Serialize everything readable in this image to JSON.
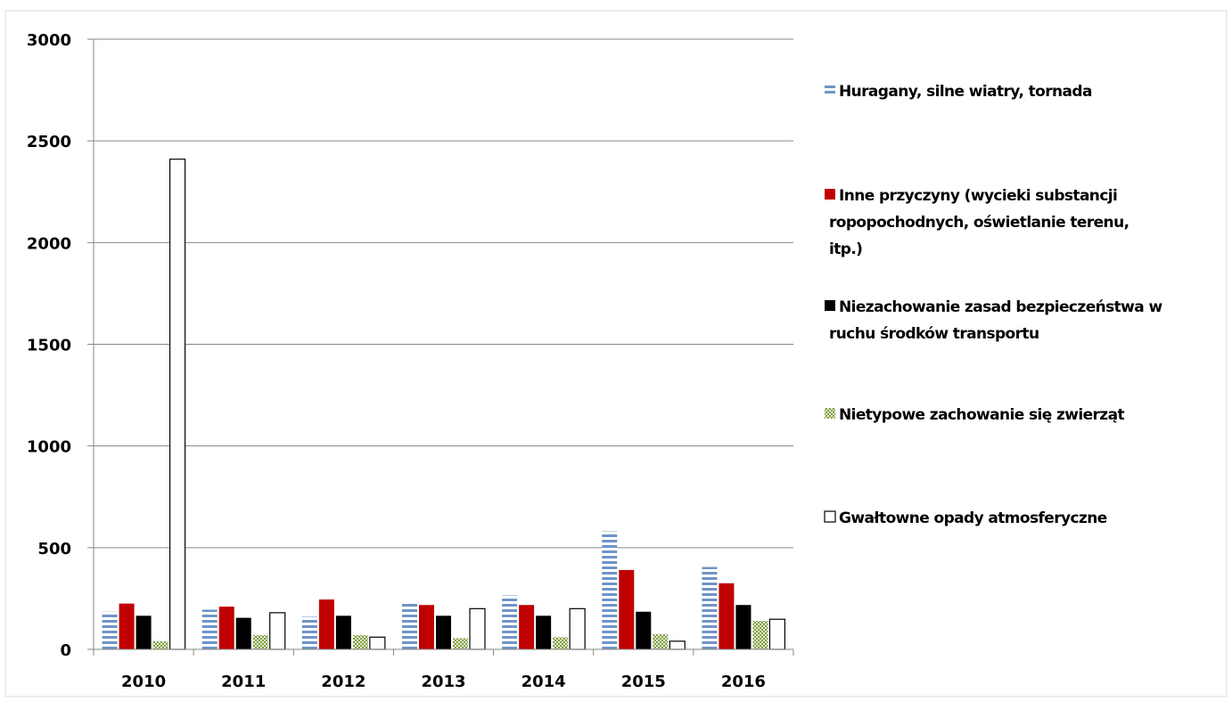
{
  "chart_data": {
    "type": "bar",
    "title": "",
    "xlabel": "",
    "ylabel": "",
    "categories": [
      "2010",
      "2011",
      "2012",
      "2013",
      "2014",
      "2015",
      "2016"
    ],
    "ylim": [
      0,
      3000
    ],
    "yticks": [
      "0",
      "500",
      "1000",
      "1500",
      "2000",
      "2500",
      "3000"
    ],
    "grid": true,
    "legend_position": "right",
    "series": [
      {
        "name": "Huragany, silne wiatry, tornada",
        "values": [
          185,
          195,
          160,
          230,
          265,
          580,
          405
        ],
        "color": "#6f95c3",
        "pattern": "horizontal-stripes"
      },
      {
        "name": "Inne przyczyny (wycieki substancji ropopochodnych, oświetlanie terenu, itp.)",
        "legend_lines": [
          "Inne przyczyny (wycieki substancji",
          "ropopochodnych, oświetlanie terenu,",
          "itp.)"
        ],
        "values": [
          225,
          210,
          245,
          218,
          218,
          390,
          325
        ],
        "color": "#c00000",
        "pattern": "solid"
      },
      {
        "name": "Niezachowanie zasad bezpieczeństwa w ruchu środków transportu",
        "legend_lines": [
          "Niezachowanie zasad bezpieczeństwa w",
          "ruchu środków transportu"
        ],
        "values": [
          165,
          155,
          165,
          165,
          165,
          185,
          218
        ],
        "color": "#000000",
        "pattern": "solid"
      },
      {
        "name": "Nietypowe zachowanie się zwierząt",
        "values": [
          40,
          70,
          70,
          55,
          60,
          75,
          140
        ],
        "color": "#9bbb59",
        "pattern": "checker"
      },
      {
        "name": "Gwałtowne opady atmosferyczne",
        "values": [
          2410,
          180,
          60,
          200,
          200,
          40,
          148
        ],
        "color": "#ffffff",
        "pattern": "outline"
      }
    ]
  }
}
